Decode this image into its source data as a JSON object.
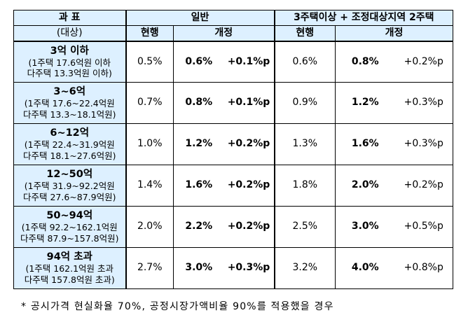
{
  "header": {
    "subject": "과  표",
    "subject_sub": "(대상)",
    "general": "일반",
    "multi": "3주택이상 + 조정대상지역 2주택",
    "current": "현행",
    "revised": "개정"
  },
  "rows": [
    {
      "title": "3억 이하",
      "line1": "(1주택 17.6억원 이하",
      "line2": "다주택 13.3억원 이하)",
      "g_cur": "0.5%",
      "g_new": "0.6%",
      "g_diff": "+0.1%p",
      "m_cur": "0.6%",
      "m_new": "0.8%",
      "m_diff": "+0.2%p"
    },
    {
      "title": "3~6억",
      "line1": "(1주택 17.6~22.4억원",
      "line2": "다주택 13.3~18.1억원)",
      "g_cur": "0.7%",
      "g_new": "0.8%",
      "g_diff": "+0.1%p",
      "m_cur": "0.9%",
      "m_new": "1.2%",
      "m_diff": "+0.3%p"
    },
    {
      "title": "6~12억",
      "line1": "(1주택 22.4~31.9억원",
      "line2": "다주택 18.1~27.6억원)",
      "g_cur": "1.0%",
      "g_new": "1.2%",
      "g_diff": "+0.2%p",
      "m_cur": "1.3%",
      "m_new": "1.6%",
      "m_diff": "+0.3%p"
    },
    {
      "title": "12~50억",
      "line1": "(1주택 31.9~92.2억원",
      "line2": "다주택 27.6~87.9억원)",
      "g_cur": "1.4%",
      "g_new": "1.6%",
      "g_diff": "+0.2%p",
      "m_cur": "1.8%",
      "m_new": "2.0%",
      "m_diff": "+0.2%p"
    },
    {
      "title": "50~94억",
      "line1": "(1주택 92.2~162.1억원",
      "line2": "다주택 87.9~157.8억원)",
      "g_cur": "2.0%",
      "g_new": "2.2%",
      "g_diff": "+0.2%p",
      "m_cur": "2.5%",
      "m_new": "3.0%",
      "m_diff": "+0.5%p"
    },
    {
      "title": "94억 초과",
      "line1": "(1주택 162.1억원 초과",
      "line2": "다주택 157.8억원 초과)",
      "g_cur": "2.7%",
      "g_new": "3.0%",
      "g_diff": "+0.3%p",
      "m_cur": "3.2%",
      "m_new": "4.0%",
      "m_diff": "+0.8%p"
    }
  ],
  "footnote": "* 공시가격 현실화율 70%, 공정시장가액비율 90%를 적용했을 경우"
}
